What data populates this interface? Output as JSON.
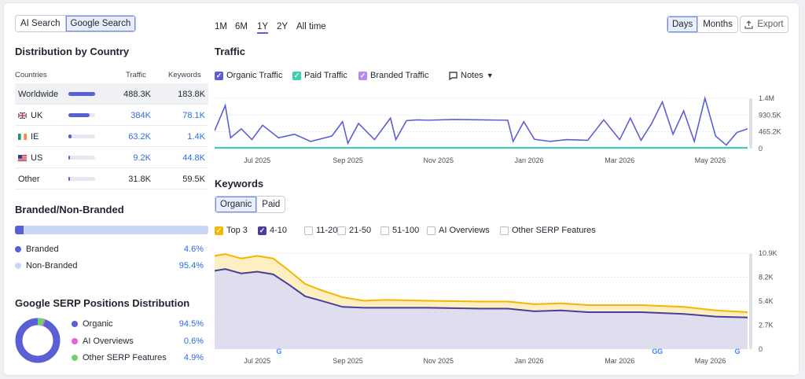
{
  "search_toggle": [
    "AI Search",
    "Google Search"
  ],
  "country": {
    "title": "Distribution by Country",
    "headers": [
      "Countries",
      "Traffic",
      "Keywords"
    ],
    "rows": [
      {
        "name": "Worldwide",
        "traffic": "488.3K",
        "keywords": "183.8K",
        "share": 1.0,
        "flag": ""
      },
      {
        "name": "UK",
        "traffic": "384K",
        "keywords": "78.1K",
        "share": 0.78,
        "flag": "uk-flag"
      },
      {
        "name": "IE",
        "traffic": "63.2K",
        "keywords": "1.4K",
        "share": 0.13,
        "flag": "ie-flag"
      },
      {
        "name": "US",
        "traffic": "9.2K",
        "keywords": "44.8K",
        "share": 0.03,
        "flag": "us-flag"
      },
      {
        "name": "Other",
        "traffic": "31.8K",
        "keywords": "59.5K",
        "share": 0.06,
        "flag": ""
      }
    ]
  },
  "branded": {
    "title": "Branded/Non-Branded",
    "branded_share": 0.046,
    "items": [
      {
        "label": "Branded",
        "value": "4.6%",
        "color": "#5b5fd6"
      },
      {
        "label": "Non-Branded",
        "value": "95.4%",
        "color": "#c9d6f5"
      }
    ]
  },
  "serp": {
    "title": "Google SERP Positions Distribution",
    "items": [
      {
        "label": "Organic",
        "value": "94.5%",
        "color": "#5b5fd6",
        "share": 0.945
      },
      {
        "label": "AI Overviews",
        "value": "0.6%",
        "color": "#e85fd8",
        "share": 0.006
      },
      {
        "label": "Other SERP Features",
        "value": "4.9%",
        "color": "#6fd36b",
        "share": 0.049
      }
    ]
  },
  "time_tabs": [
    "1M",
    "6M",
    "1Y",
    "2Y",
    "All time"
  ],
  "active_time_tab": "1Y",
  "period_toggle": [
    "Days",
    "Months"
  ],
  "export_label": "Export",
  "traffic": {
    "title": "Traffic",
    "legend": [
      {
        "label": "Organic Traffic",
        "color": "#5b5fd6"
      },
      {
        "label": "Paid Traffic",
        "color": "#3ccfb4"
      },
      {
        "label": "Branded Traffic",
        "color": "#b48af0"
      }
    ],
    "notes_label": "Notes"
  },
  "keywords": {
    "title": "Keywords",
    "tabs": [
      "Organic",
      "Paid"
    ],
    "filters": [
      {
        "label": "Top 3",
        "checked": true,
        "color": "#f5b500"
      },
      {
        "label": "4-10",
        "checked": true,
        "color": "#4b3d9e"
      },
      {
        "label": "11-20",
        "checked": false,
        "color": ""
      },
      {
        "label": "21-50",
        "checked": false,
        "color": ""
      },
      {
        "label": "51-100",
        "checked": false,
        "color": ""
      },
      {
        "label": "AI Overviews",
        "checked": false,
        "color": ""
      },
      {
        "label": "Other SERP Features",
        "checked": false,
        "color": ""
      }
    ]
  },
  "chart_data": [
    {
      "type": "line",
      "title": "Traffic",
      "x_ticks": [
        "Jul 2025",
        "Sep 2025",
        "Nov 2025",
        "Jan 2026",
        "Mar 2026",
        "May 2026"
      ],
      "y_ticks": [
        "1.4M",
        "930.5K",
        "465.2K",
        "0"
      ],
      "ylim": [
        0,
        1400000
      ],
      "series": [
        {
          "name": "Organic Traffic",
          "color": "#5b5fd6",
          "x": [
            0,
            0.02,
            0.03,
            0.05,
            0.07,
            0.09,
            0.12,
            0.15,
            0.18,
            0.22,
            0.24,
            0.25,
            0.27,
            0.3,
            0.33,
            0.34,
            0.36,
            0.38,
            0.4,
            0.45,
            0.5,
            0.55,
            0.56,
            0.58,
            0.6,
            0.63,
            0.66,
            0.7,
            0.73,
            0.76,
            0.78,
            0.8,
            0.82,
            0.84,
            0.86,
            0.88,
            0.9,
            0.92,
            0.94,
            0.96,
            0.98,
            1.0
          ],
          "values": [
            500000,
            1200000,
            300000,
            550000,
            250000,
            650000,
            300000,
            400000,
            200000,
            350000,
            750000,
            150000,
            700000,
            250000,
            850000,
            250000,
            780000,
            800000,
            790000,
            810000,
            800000,
            790000,
            200000,
            750000,
            260000,
            200000,
            250000,
            230000,
            800000,
            250000,
            850000,
            230000,
            700000,
            1300000,
            400000,
            1050000,
            200000,
            1400000,
            350000,
            100000,
            450000,
            550000
          ]
        },
        {
          "name": "Paid Traffic",
          "color": "#3ccfb4",
          "x": [
            0,
            1
          ],
          "values": [
            20000,
            20000
          ]
        },
        {
          "name": "Branded Traffic",
          "color": "#b48af0",
          "x": [
            0,
            1
          ],
          "values": [
            25000,
            25000
          ]
        }
      ]
    },
    {
      "type": "area",
      "title": "Keywords",
      "x_ticks": [
        "Jul 2025",
        "Sep 2025",
        "Nov 2025",
        "Jan 2026",
        "Mar 2026",
        "May 2026"
      ],
      "y_ticks": [
        "10.9K",
        "8.2K",
        "5.4K",
        "2.7K",
        "0"
      ],
      "ylim": [
        0,
        10900
      ],
      "series": [
        {
          "name": "Top 3",
          "color": "#f5b500",
          "x": [
            0,
            0.02,
            0.05,
            0.08,
            0.11,
            0.14,
            0.17,
            0.2,
            0.24,
            0.28,
            0.32,
            0.4,
            0.5,
            0.55,
            0.6,
            0.65,
            0.7,
            0.8,
            0.88,
            0.94,
            1.0
          ],
          "values": [
            10600,
            10800,
            10300,
            10600,
            10300,
            8900,
            7400,
            6700,
            5900,
            5500,
            5600,
            5500,
            5400,
            5400,
            5100,
            5200,
            5000,
            5000,
            4800,
            4400,
            4200
          ]
        },
        {
          "name": "4-10",
          "color": "#4b3d9e",
          "x": [
            0,
            0.02,
            0.05,
            0.08,
            0.11,
            0.14,
            0.17,
            0.2,
            0.24,
            0.28,
            0.32,
            0.4,
            0.5,
            0.55,
            0.6,
            0.65,
            0.7,
            0.8,
            0.88,
            0.94,
            1.0
          ],
          "values": [
            8900,
            9100,
            8600,
            8800,
            8500,
            7300,
            6000,
            5500,
            4800,
            4700,
            4700,
            4700,
            4600,
            4600,
            4300,
            4400,
            4200,
            4200,
            4000,
            3700,
            3600
          ]
        }
      ]
    }
  ]
}
